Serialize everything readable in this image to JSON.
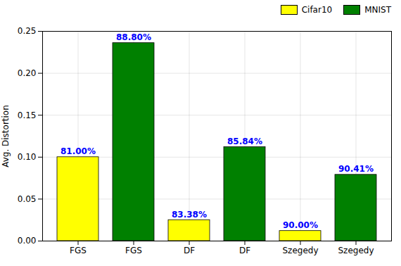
{
  "chart_data": {
    "type": "bar",
    "categories": [
      "FGS",
      "FGS",
      "DF",
      "DF",
      "Szegedy",
      "Szegedy"
    ],
    "series": [
      {
        "name": "Cifar10",
        "color": "#ffff00",
        "values": [
          0.1,
          null,
          0.025,
          null,
          0.012,
          null
        ],
        "annotations": [
          "81.00%",
          null,
          "83.38%",
          null,
          "90.00%",
          null
        ]
      },
      {
        "name": "MNIST",
        "color": "#008000",
        "values": [
          null,
          0.236,
          null,
          0.112,
          null,
          0.079
        ],
        "annotations": [
          null,
          "88.80%",
          null,
          "85.84%",
          null,
          "90.41%"
        ]
      }
    ],
    "ylabel": "Avg. Distortion",
    "ylim": [
      0,
      0.25
    ],
    "yticks": [
      {
        "value": 0.0,
        "label": "0.00"
      },
      0.05,
      {
        "value": 0.1,
        "label": "0.10"
      },
      0.15,
      {
        "value": 0.2,
        "label": "0.20"
      },
      0.25
    ],
    "grid": true,
    "legend": "upper right"
  }
}
